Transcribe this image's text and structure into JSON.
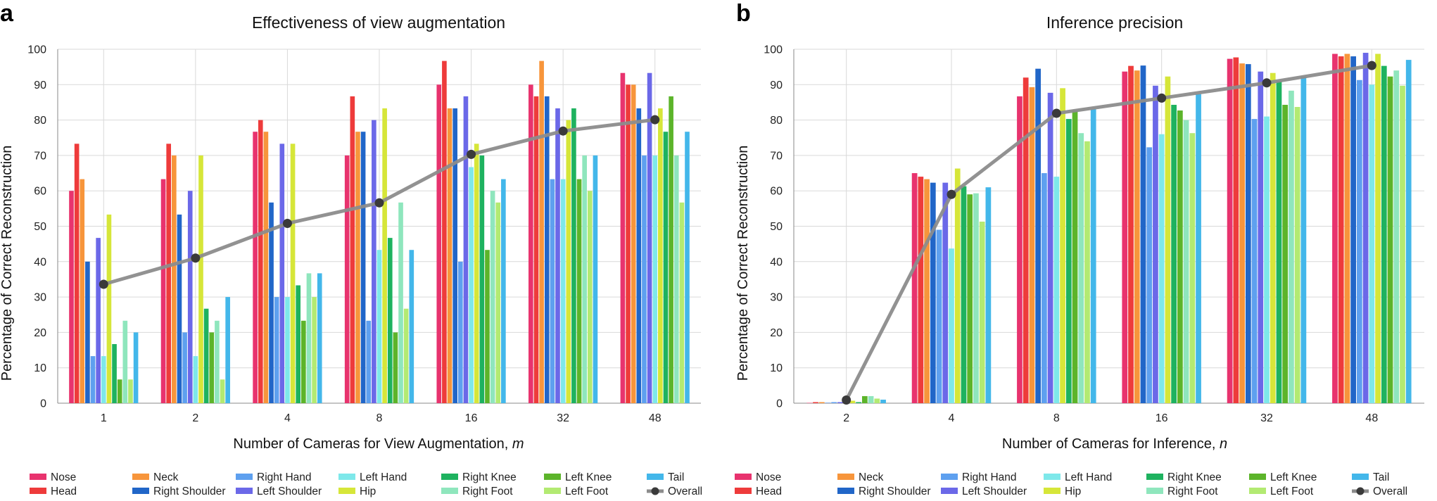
{
  "panels": [
    {
      "letter": "a"
    },
    {
      "letter": "b"
    }
  ],
  "series_colors": {
    "Nose": "#e8336e",
    "Head": "#ee3b3b",
    "Neck": "#f7953b",
    "Right Shoulder": "#2166c8",
    "Right Hand": "#5ea0ef",
    "Left Shoulder": "#6b68e8",
    "Left Hand": "#7ee8ea",
    "Hip": "#d6e639",
    "Right Knee": "#1eb25f",
    "Right Foot": "#8fe6bd",
    "Left Knee": "#5cb42a",
    "Left Foot": "#b3ea72",
    "Tail": "#43b7ea",
    "Overall": "#8c8c8c"
  },
  "legend_order": [
    "Nose",
    "Head",
    "Neck",
    "Right Shoulder",
    "Right Hand",
    "Left Shoulder",
    "Left Hand",
    "Hip",
    "Right Knee",
    "Right Foot",
    "Left Knee",
    "Left Foot",
    "Tail",
    "Overall"
  ],
  "chart_data": [
    {
      "type": "bar",
      "title": "Effectiveness of view augmentation",
      "xlabel": "Number of Cameras for View Augmentation, ",
      "xlabel_var": "m",
      "ylabel": "Percentage of Correct Reconstruction",
      "ylim": [
        0,
        100
      ],
      "yticks": [
        0,
        10,
        20,
        30,
        40,
        50,
        60,
        70,
        80,
        90,
        100
      ],
      "categories": [
        "1",
        "2",
        "4",
        "8",
        "16",
        "32",
        "48"
      ],
      "series": [
        {
          "name": "Nose",
          "values": [
            60,
            63.3,
            76.7,
            70,
            90,
            90,
            93.3
          ]
        },
        {
          "name": "Head",
          "values": [
            73.3,
            73.3,
            80,
            86.7,
            96.7,
            86.7,
            90
          ]
        },
        {
          "name": "Neck",
          "values": [
            63.3,
            70,
            76.7,
            76.7,
            83.3,
            96.7,
            90
          ]
        },
        {
          "name": "Right Shoulder",
          "values": [
            40,
            53.3,
            56.7,
            76.7,
            83.3,
            86.7,
            83.3
          ]
        },
        {
          "name": "Right Hand",
          "values": [
            13.3,
            20,
            30,
            23.3,
            40,
            63.3,
            70
          ]
        },
        {
          "name": "Left Shoulder",
          "values": [
            46.7,
            60,
            73.3,
            80,
            86.7,
            83.3,
            93.3
          ]
        },
        {
          "name": "Left Hand",
          "values": [
            13.3,
            13.3,
            30,
            43.3,
            66.7,
            63.3,
            70
          ]
        },
        {
          "name": "Hip",
          "values": [
            53.3,
            70,
            73.3,
            83.3,
            73.3,
            80,
            83.3
          ]
        },
        {
          "name": "Right Knee",
          "values": [
            16.7,
            26.7,
            33.3,
            46.7,
            70,
            83.3,
            76.7
          ]
        },
        {
          "name": "Left Knee",
          "values": [
            6.7,
            20,
            23.3,
            20,
            43.3,
            63.3,
            86.7
          ]
        },
        {
          "name": "Right Foot",
          "values": [
            23.3,
            23.3,
            36.7,
            56.7,
            60,
            70,
            70
          ]
        },
        {
          "name": "Left Foot",
          "values": [
            6.7,
            6.7,
            30,
            26.7,
            56.7,
            60,
            56.7
          ]
        },
        {
          "name": "Tail",
          "values": [
            20,
            30,
            36.7,
            43.3,
            63.3,
            70,
            76.7
          ]
        }
      ],
      "overall": {
        "name": "Overall",
        "values": [
          33.6,
          41,
          50.8,
          56.6,
          70.3,
          76.9,
          80.1
        ]
      }
    },
    {
      "type": "bar",
      "title": "Inference precision",
      "xlabel": "Number of Cameras for Inference, ",
      "xlabel_var": "n",
      "ylabel": "Percentage of Correct Reconstruction",
      "ylim": [
        0,
        100
      ],
      "yticks": [
        0,
        10,
        20,
        30,
        40,
        50,
        60,
        70,
        80,
        90,
        100
      ],
      "categories": [
        "2",
        "4",
        "8",
        "16",
        "32",
        "48"
      ],
      "series": [
        {
          "name": "Nose",
          "values": [
            0,
            65,
            86.7,
            93.7,
            97.3,
            98.7
          ]
        },
        {
          "name": "Head",
          "values": [
            0.3,
            64,
            92,
            95.3,
            97.7,
            98
          ]
        },
        {
          "name": "Neck",
          "values": [
            0.3,
            63.3,
            89.3,
            94,
            96,
            98.7
          ]
        },
        {
          "name": "Right Shoulder",
          "values": [
            0,
            62.3,
            94.5,
            95.4,
            95.8,
            98
          ]
        },
        {
          "name": "Right Hand",
          "values": [
            0.3,
            49,
            65,
            72.3,
            80.3,
            91.3
          ]
        },
        {
          "name": "Left Shoulder",
          "values": [
            0.3,
            62.3,
            87.7,
            89.7,
            93.7,
            99
          ]
        },
        {
          "name": "Left Hand",
          "values": [
            0,
            43.7,
            64,
            76,
            81,
            90
          ]
        },
        {
          "name": "Hip",
          "values": [
            0.7,
            66.3,
            89,
            92.3,
            93.3,
            98.7
          ]
        },
        {
          "name": "Right Knee",
          "values": [
            0.3,
            61.3,
            80.3,
            84.3,
            91,
            95.3
          ]
        },
        {
          "name": "Left Knee",
          "values": [
            2,
            59,
            82.7,
            82.7,
            84.3,
            92.3
          ]
        },
        {
          "name": "Right Foot",
          "values": [
            2,
            59.3,
            76.3,
            80,
            88.3,
            94
          ]
        },
        {
          "name": "Left Foot",
          "values": [
            1.3,
            51.3,
            74,
            76.3,
            83.7,
            89.7
          ]
        },
        {
          "name": "Tail",
          "values": [
            1,
            61,
            83,
            87.3,
            92.3,
            97
          ]
        }
      ],
      "overall": {
        "name": "Overall",
        "values": [
          0.9,
          59,
          81.9,
          86.2,
          90.5,
          95.4
        ]
      }
    }
  ]
}
